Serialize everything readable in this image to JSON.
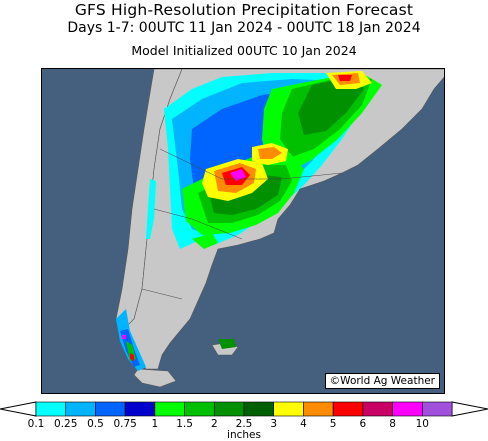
{
  "header": {
    "title": "GFS High-Resolution Precipitation Forecast",
    "period": "Days 1-7: 00UTC 11 Jan 2024 - 00UTC 18 Jan 2024",
    "init": "Model Initialized 00UTC 10 Jan 2024"
  },
  "map": {
    "credit": "©World Ag Weather",
    "ocean_color": "#45607e",
    "land_color": "#c8c8c8"
  },
  "legend": {
    "unit": "inches",
    "ticks": [
      "0.1",
      "0.25",
      "0.5",
      "0.75",
      "1",
      "1.5",
      "2",
      "2.5",
      "3",
      "4",
      "5",
      "6",
      "8",
      "10"
    ],
    "colors": [
      "#00ffff",
      "#00b4ff",
      "#0064ff",
      "#0000cd",
      "#00ff00",
      "#00c000",
      "#009000",
      "#006000",
      "#ffff00",
      "#ff8c00",
      "#ff0000",
      "#c80064",
      "#ff00ff",
      "#a050dc"
    ]
  }
}
